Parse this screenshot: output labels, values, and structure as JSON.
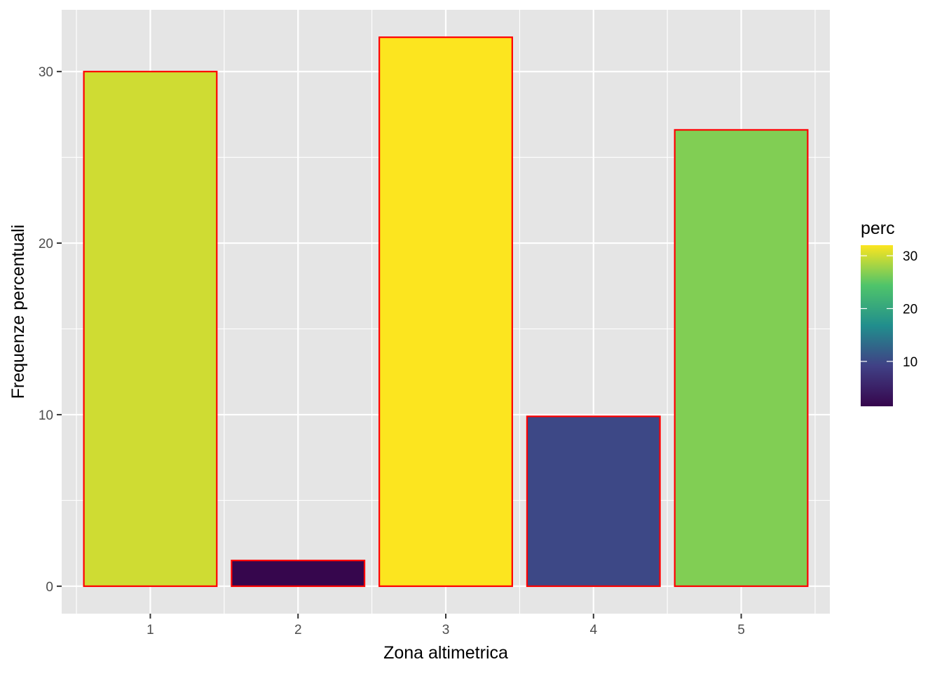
{
  "chart_data": {
    "type": "bar",
    "categories": [
      "1",
      "2",
      "3",
      "4",
      "5"
    ],
    "values": [
      30.0,
      1.5,
      32.0,
      9.9,
      26.6
    ],
    "xlabel": "Zona altimetrica",
    "ylabel": "Frequenze percentuali",
    "ylim": [
      -1.6,
      33.6
    ],
    "yticks": [
      0,
      10,
      20,
      30
    ],
    "ytick_labels": [
      "0",
      "10",
      "20",
      "30"
    ],
    "grid": true,
    "bar_outline_color": "#ff0000",
    "bar_fill_scale": "viridis",
    "panel_background": "#e5e5e5",
    "legend": {
      "title": "perc",
      "placement": "right",
      "type": "colorbar",
      "min": 1.5,
      "max": 32.0,
      "ticks": [
        10,
        20,
        30
      ],
      "tick_labels": [
        "10",
        "20",
        "30"
      ]
    }
  }
}
